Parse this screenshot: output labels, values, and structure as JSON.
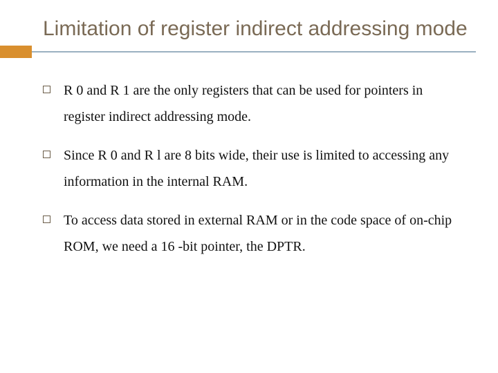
{
  "slide": {
    "title": "Limitation of register indirect addressing mode",
    "title_color": "#7a6a55",
    "title_fontsize": 30,
    "accent_color": "#d98f2e",
    "underline_color": "#9ab0c0",
    "background_color": "#ffffff",
    "bullet_marker_color": "#6a5c48",
    "body_font": "serif",
    "body_fontsize": 20,
    "body_color": "#111111",
    "bullets": [
      "R 0 and R 1 are the only registers that can be used for pointers in register indirect addressing mode.",
      "Since R 0 and R l are 8 bits wide, their use is limited to accessing any information in the internal RAM.",
      "To access data stored in external RAM or in the code space of on-chip ROM, we need a 16 -bit pointer, the DPTR."
    ]
  }
}
